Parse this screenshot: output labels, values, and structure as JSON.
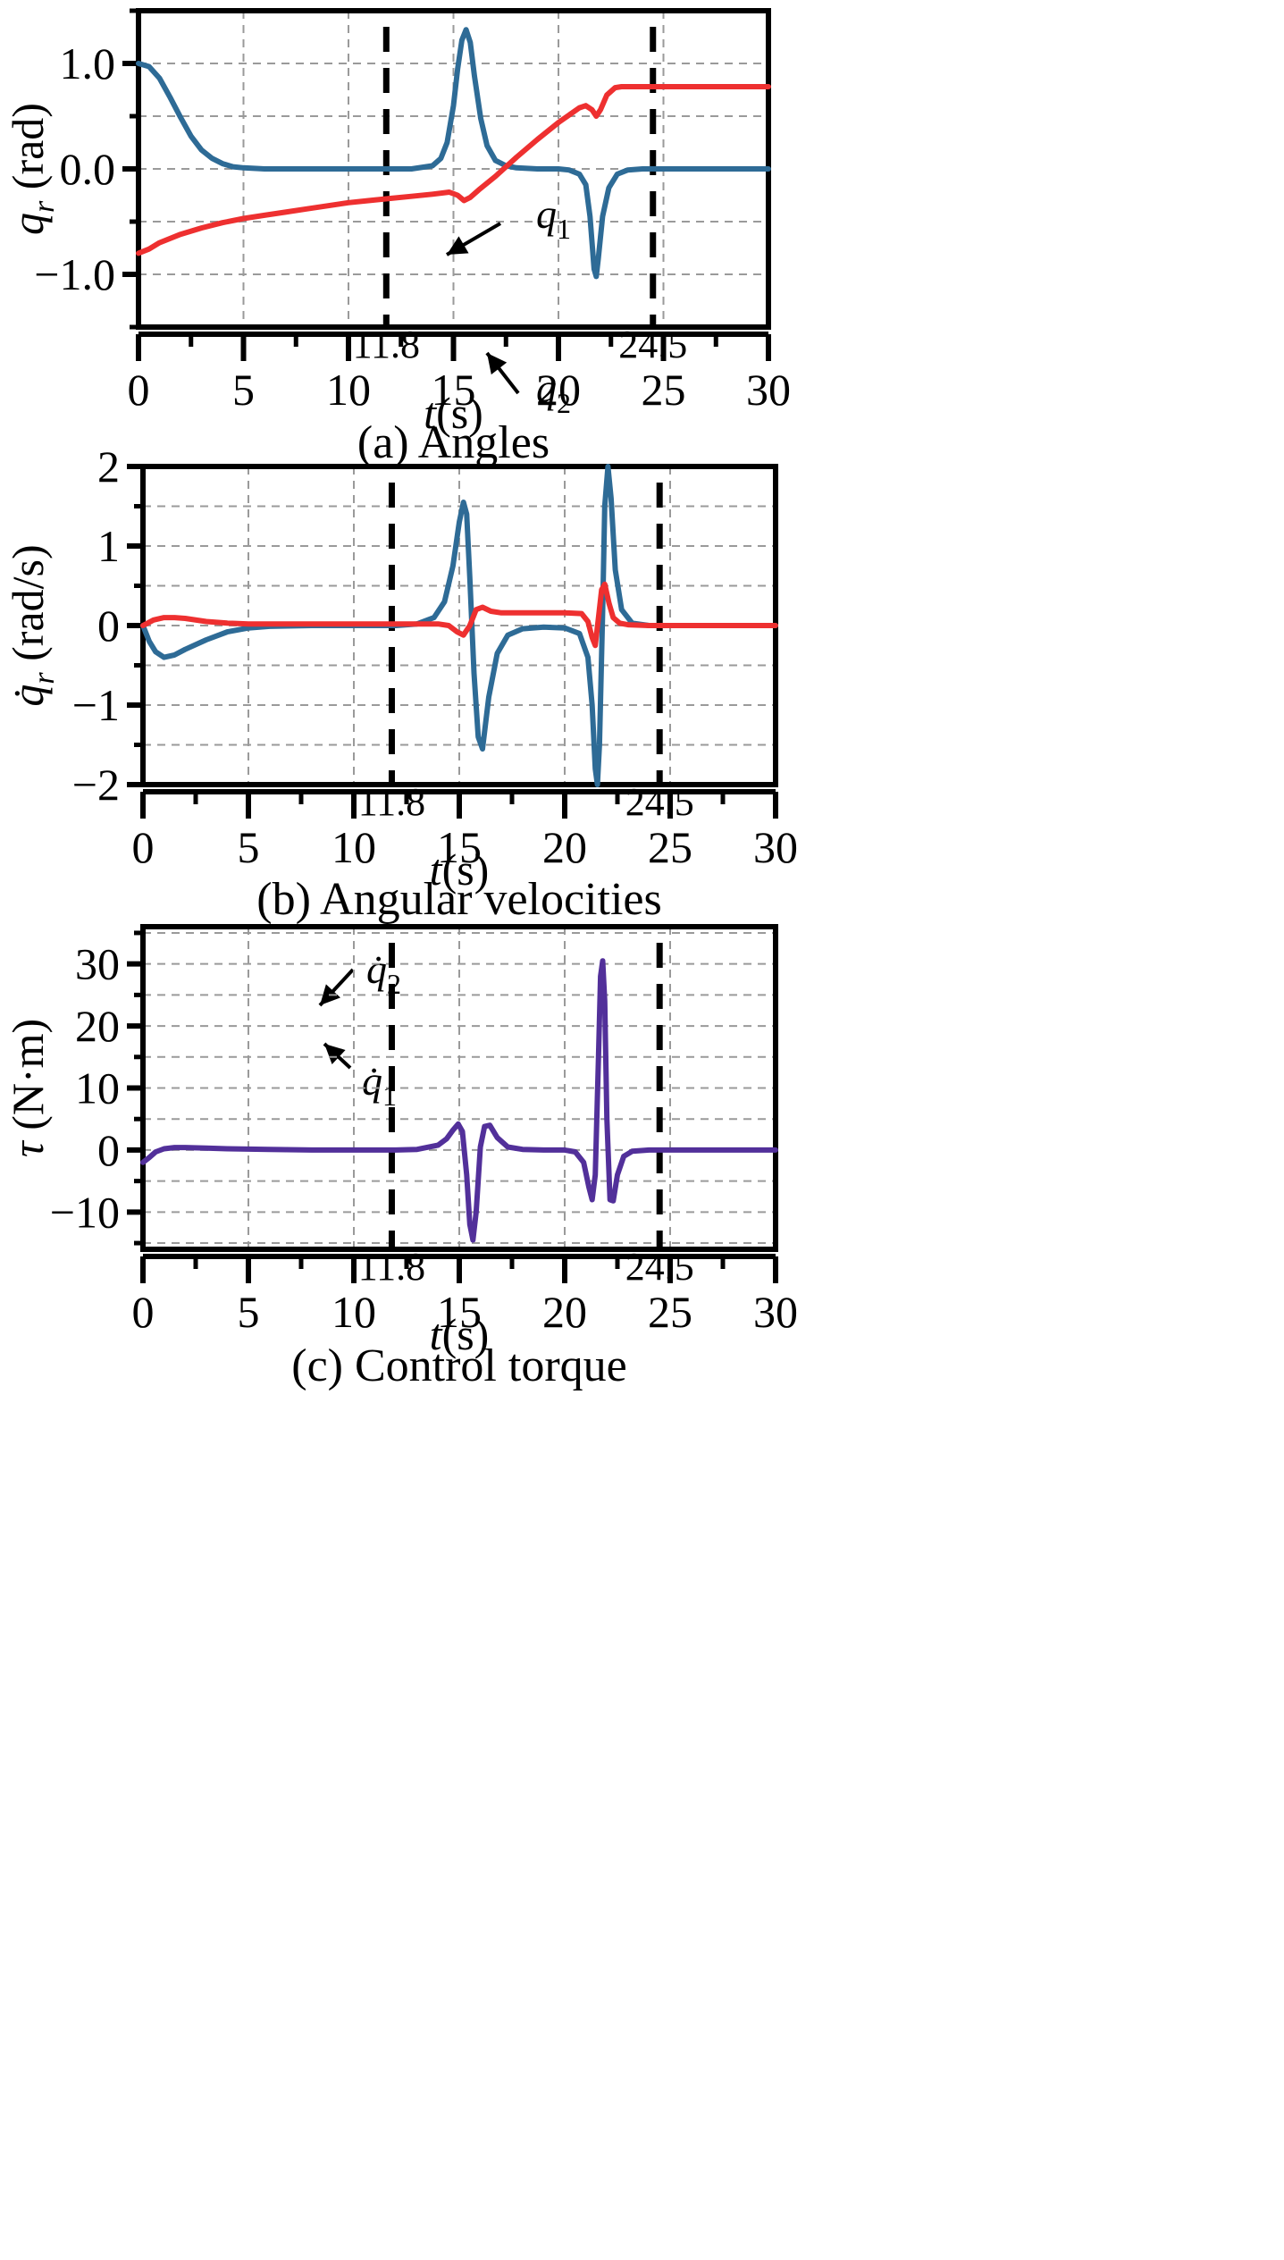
{
  "chart_data": [
    {
      "type": "line",
      "title": "",
      "caption": "(a) Angles",
      "xlabel_var": "t",
      "xlabel_unit": "(s)",
      "ylabel_var": "q",
      "ylabel_sub": "r",
      "ylabel_unit": "(rad)",
      "xlim": [
        0,
        30
      ],
      "ylim": [
        -1.5,
        1.5
      ],
      "xticks": [
        0,
        5,
        10,
        15,
        20,
        25,
        30
      ],
      "yticks": [
        1.0,
        0.0,
        -1.0
      ],
      "ytick_labels": [
        "1.0",
        "0.0",
        "−1.0"
      ],
      "grid": true,
      "markers": [
        {
          "x": 11.8,
          "label": "11.8"
        },
        {
          "x": 24.5,
          "label": "24.5"
        }
      ],
      "series": [
        {
          "name": "q1",
          "label_main": "q",
          "label_sub": "1",
          "color": "#2e6b96",
          "x": [
            0,
            0.5,
            1,
            1.5,
            2,
            2.5,
            3,
            3.5,
            4,
            4.5,
            5,
            6,
            7,
            8,
            9,
            10,
            11,
            12,
            13,
            14,
            14.4,
            14.7,
            15,
            15.2,
            15.4,
            15.6,
            15.8,
            16,
            16.3,
            16.6,
            17,
            17.5,
            18,
            19,
            20,
            20.5,
            21,
            21.3,
            21.5,
            21.6,
            21.7,
            21.8,
            21.9,
            22.1,
            22.4,
            22.8,
            23.3,
            24,
            25,
            26,
            27,
            28,
            29,
            30
          ],
          "y": [
            1.0,
            0.97,
            0.86,
            0.68,
            0.49,
            0.31,
            0.18,
            0.1,
            0.05,
            0.02,
            0.01,
            0.0,
            0.0,
            0.0,
            0.0,
            0.0,
            0.0,
            0.0,
            0.0,
            0.03,
            0.1,
            0.25,
            0.6,
            0.95,
            1.22,
            1.32,
            1.2,
            0.88,
            0.48,
            0.22,
            0.08,
            0.03,
            0.01,
            0.0,
            0.0,
            -0.01,
            -0.05,
            -0.15,
            -0.45,
            -0.7,
            -0.95,
            -1.02,
            -0.85,
            -0.45,
            -0.18,
            -0.05,
            -0.01,
            0.0,
            0.0,
            0.0,
            0.0,
            0.0,
            0.0,
            0.0
          ]
        },
        {
          "name": "q2",
          "label_main": "q",
          "label_sub": "2",
          "color": "#ee3030",
          "x": [
            0,
            0.5,
            1,
            2,
            3,
            4,
            5,
            6,
            7,
            8,
            9,
            10,
            11,
            12,
            13,
            14,
            14.8,
            15.2,
            15.5,
            15.8,
            16.2,
            17,
            18,
            19,
            20,
            21,
            21.3,
            21.6,
            21.8,
            22,
            22.3,
            22.7,
            23,
            24,
            25,
            26,
            27,
            28,
            29,
            30
          ],
          "y": [
            -0.8,
            -0.76,
            -0.7,
            -0.62,
            -0.56,
            -0.51,
            -0.47,
            -0.44,
            -0.41,
            -0.38,
            -0.35,
            -0.32,
            -0.3,
            -0.28,
            -0.26,
            -0.24,
            -0.22,
            -0.25,
            -0.3,
            -0.27,
            -0.2,
            -0.07,
            0.11,
            0.28,
            0.44,
            0.58,
            0.6,
            0.56,
            0.5,
            0.56,
            0.7,
            0.77,
            0.78,
            0.78,
            0.78,
            0.78,
            0.78,
            0.78,
            0.78,
            0.78
          ]
        }
      ]
    },
    {
      "type": "line",
      "title": "",
      "caption": "(b) Angular velocities",
      "xlabel_var": "t",
      "xlabel_unit": "(s)",
      "ylabel_var": "q̇",
      "ylabel_sub": "r",
      "ylabel_unit": "(rad/s)",
      "xlim": [
        0,
        30
      ],
      "ylim": [
        -2,
        2
      ],
      "xticks": [
        0,
        5,
        10,
        15,
        20,
        25,
        30
      ],
      "yticks": [
        2,
        1,
        0,
        -1,
        -2
      ],
      "ytick_labels": [
        "2",
        "1",
        "0",
        "−1",
        "−2"
      ],
      "grid": true,
      "markers": [
        {
          "x": 11.8,
          "label": "11.8"
        },
        {
          "x": 24.5,
          "label": "24.5"
        }
      ],
      "series": [
        {
          "name": "dq1",
          "label_main": "q̇",
          "label_sub": "1",
          "color": "#2e6b96",
          "x": [
            0,
            0.3,
            0.6,
            1,
            1.5,
            2,
            3,
            4,
            5,
            6,
            8,
            10,
            12,
            13,
            13.8,
            14.3,
            14.7,
            15,
            15.2,
            15.35,
            15.5,
            15.7,
            15.9,
            16.1,
            16.4,
            16.8,
            17.3,
            18,
            19,
            20,
            20.7,
            21.1,
            21.3,
            21.45,
            21.55,
            21.65,
            21.8,
            21.9,
            22.05,
            22.2,
            22.4,
            22.7,
            23.2,
            24,
            25,
            27,
            30
          ],
          "y": [
            0,
            -0.2,
            -0.33,
            -0.4,
            -0.37,
            -0.3,
            -0.18,
            -0.08,
            -0.03,
            -0.01,
            0,
            0,
            0,
            0.02,
            0.1,
            0.3,
            0.75,
            1.3,
            1.55,
            1.4,
            0.6,
            -0.6,
            -1.4,
            -1.55,
            -0.9,
            -0.35,
            -0.12,
            -0.04,
            -0.02,
            -0.03,
            -0.1,
            -0.4,
            -1.0,
            -1.8,
            -2.0,
            -1.5,
            0.2,
            1.5,
            2.0,
            1.6,
            0.7,
            0.2,
            0.03,
            0,
            0,
            0,
            0
          ]
        },
        {
          "name": "dq2",
          "label_main": "q̇",
          "label_sub": "2",
          "color": "#ee3030",
          "x": [
            0,
            0.5,
            1,
            1.5,
            2,
            3,
            4,
            5,
            6,
            8,
            10,
            12,
            13,
            14,
            14.5,
            14.9,
            15.2,
            15.5,
            15.8,
            16.1,
            16.5,
            17,
            18,
            19,
            20,
            20.8,
            21.1,
            21.3,
            21.45,
            21.6,
            21.75,
            21.9,
            22.1,
            22.3,
            22.6,
            23,
            24,
            25,
            27,
            30
          ],
          "y": [
            0,
            0.07,
            0.1,
            0.1,
            0.09,
            0.05,
            0.03,
            0.02,
            0.02,
            0.02,
            0.02,
            0.02,
            0.02,
            0.02,
            0.0,
            -0.08,
            -0.12,
            0.0,
            0.2,
            0.23,
            0.18,
            0.16,
            0.16,
            0.16,
            0.16,
            0.15,
            0.05,
            -0.15,
            -0.25,
            0.1,
            0.45,
            0.52,
            0.28,
            0.1,
            0.03,
            0.01,
            0,
            0,
            0,
            0
          ]
        }
      ]
    },
    {
      "type": "line",
      "title": "",
      "caption": "(c) Control torque",
      "xlabel_var": "t",
      "xlabel_unit": "(s)",
      "ylabel_var": "τ",
      "ylabel_sub": "",
      "ylabel_unit": "(N·m)",
      "xlim": [
        0,
        30
      ],
      "ylim": [
        -16,
        36
      ],
      "xticks": [
        0,
        5,
        10,
        15,
        20,
        25,
        30
      ],
      "yticks": [
        30,
        20,
        10,
        0,
        -10
      ],
      "ytick_labels": [
        "30",
        "20",
        "10",
        "0",
        "−10"
      ],
      "grid": true,
      "markers": [
        {
          "x": 11.8,
          "label": "11.8"
        },
        {
          "x": 24.5,
          "label": "24.5"
        }
      ],
      "series": [
        {
          "name": "tau",
          "label_main": "",
          "label_sub": "",
          "color": "#52309a",
          "x": [
            0,
            0.3,
            0.6,
            1,
            1.5,
            2,
            3,
            4,
            6,
            8,
            10,
            12,
            13,
            14,
            14.4,
            14.7,
            14.95,
            15.15,
            15.35,
            15.5,
            15.65,
            15.8,
            16,
            16.2,
            16.45,
            16.8,
            17.3,
            18,
            19,
            20,
            20.5,
            20.9,
            21.15,
            21.3,
            21.45,
            21.6,
            21.7,
            21.8,
            21.9,
            22.0,
            22.15,
            22.3,
            22.5,
            22.8,
            23.2,
            24,
            25,
            27,
            30
          ],
          "y": [
            -2,
            -1.2,
            -0.3,
            0.2,
            0.4,
            0.4,
            0.3,
            0.2,
            0.1,
            0,
            0,
            0,
            0.1,
            0.8,
            1.8,
            3.2,
            4.2,
            3.0,
            -4,
            -12,
            -14.5,
            -10,
            0.5,
            3.8,
            4.0,
            2.0,
            0.5,
            0.1,
            0,
            0,
            -0.3,
            -2,
            -6,
            -8,
            -4,
            15,
            28,
            30.5,
            24,
            5,
            -8,
            -8.2,
            -4,
            -1,
            -0.2,
            0,
            0,
            0,
            0
          ]
        }
      ]
    }
  ]
}
